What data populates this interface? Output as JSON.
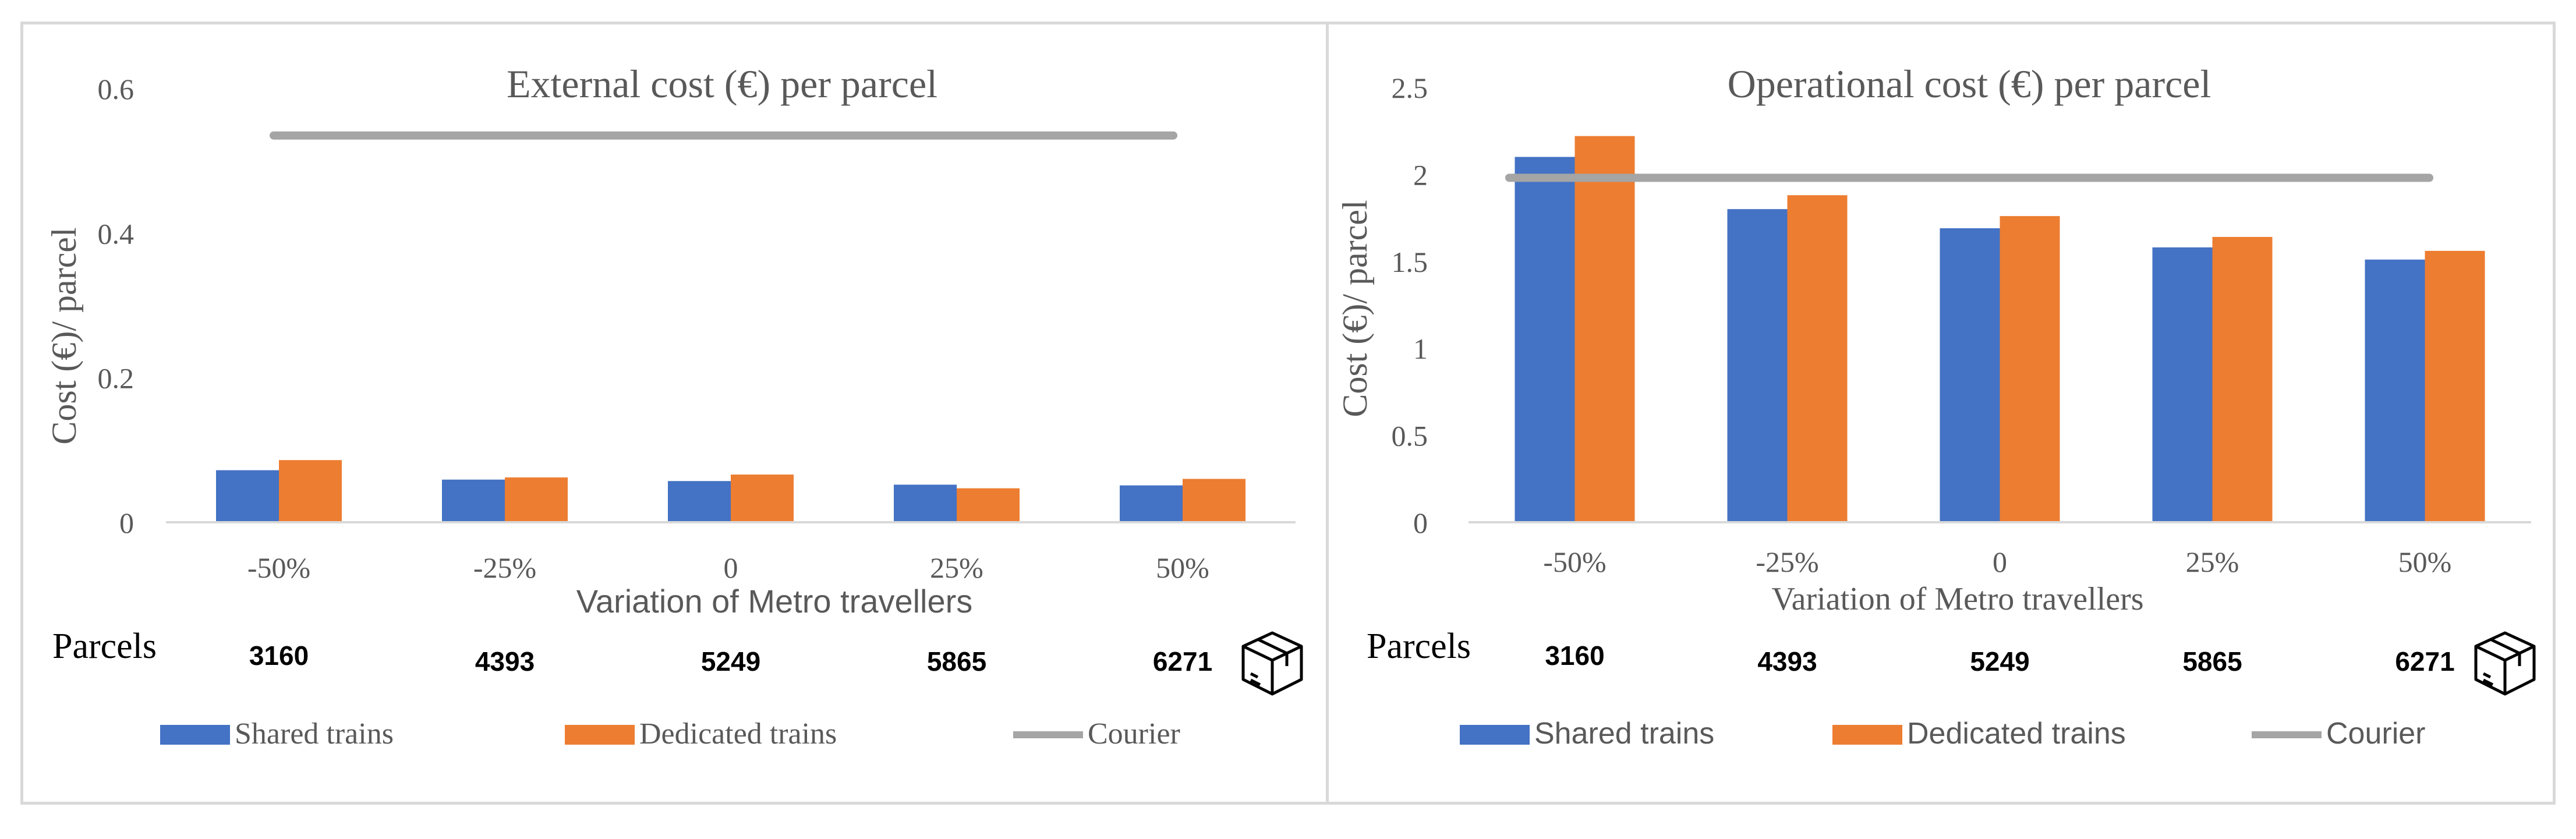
{
  "colors": {
    "shared": "#4472C4",
    "dedicated": "#ED7D31",
    "courier": "#A5A5A5",
    "axis": "#d9d9d9",
    "text": "#595959"
  },
  "chart_data": [
    {
      "type": "bar",
      "title": "External cost (€) per parcel",
      "xlabel": "Variation of Metro travellers",
      "ylabel": "Cost (€)/ parcel",
      "categories": [
        "-50%",
        "-25%",
        "0",
        "25%",
        "50%"
      ],
      "yticks": [
        "0",
        "0.2",
        "0.4",
        "0.6"
      ],
      "ylim": [
        0,
        0.6
      ],
      "series": [
        {
          "name": "Shared trains",
          "kind": "bar",
          "values": [
            0.072,
            0.059,
            0.057,
            0.052,
            0.051
          ]
        },
        {
          "name": "Dedicated trains",
          "kind": "bar",
          "values": [
            0.086,
            0.062,
            0.066,
            0.047,
            0.06
          ]
        },
        {
          "name": "Courier",
          "kind": "line",
          "values": [
            0.535,
            0.535,
            0.535,
            0.535,
            0.535
          ]
        }
      ],
      "parcels_label": "Parcels",
      "parcels": [
        "3160",
        "4393",
        "5249",
        "5865",
        "6271"
      ]
    },
    {
      "type": "bar",
      "title": "Operational cost (€) per parcel",
      "xlabel": "Variation of Metro travellers",
      "ylabel": "Cost (€)/ parcel",
      "categories": [
        "-50%",
        "-25%",
        "0",
        "25%",
        "50%"
      ],
      "yticks": [
        "0",
        "0.5",
        "1",
        "1.5",
        "2",
        "2.5"
      ],
      "ylim": [
        0,
        2.5
      ],
      "series": [
        {
          "name": "Shared trains",
          "kind": "bar",
          "values": [
            2.1,
            1.8,
            1.69,
            1.58,
            1.51
          ]
        },
        {
          "name": "Dedicated trains",
          "kind": "bar",
          "values": [
            2.22,
            1.88,
            1.76,
            1.64,
            1.56
          ]
        },
        {
          "name": "Courier",
          "kind": "line",
          "values": [
            1.98,
            1.98,
            1.98,
            1.98,
            1.98
          ]
        }
      ],
      "parcels_label": "Parcels",
      "parcels": [
        "3160",
        "4393",
        "5249",
        "5865",
        "6271"
      ]
    }
  ]
}
